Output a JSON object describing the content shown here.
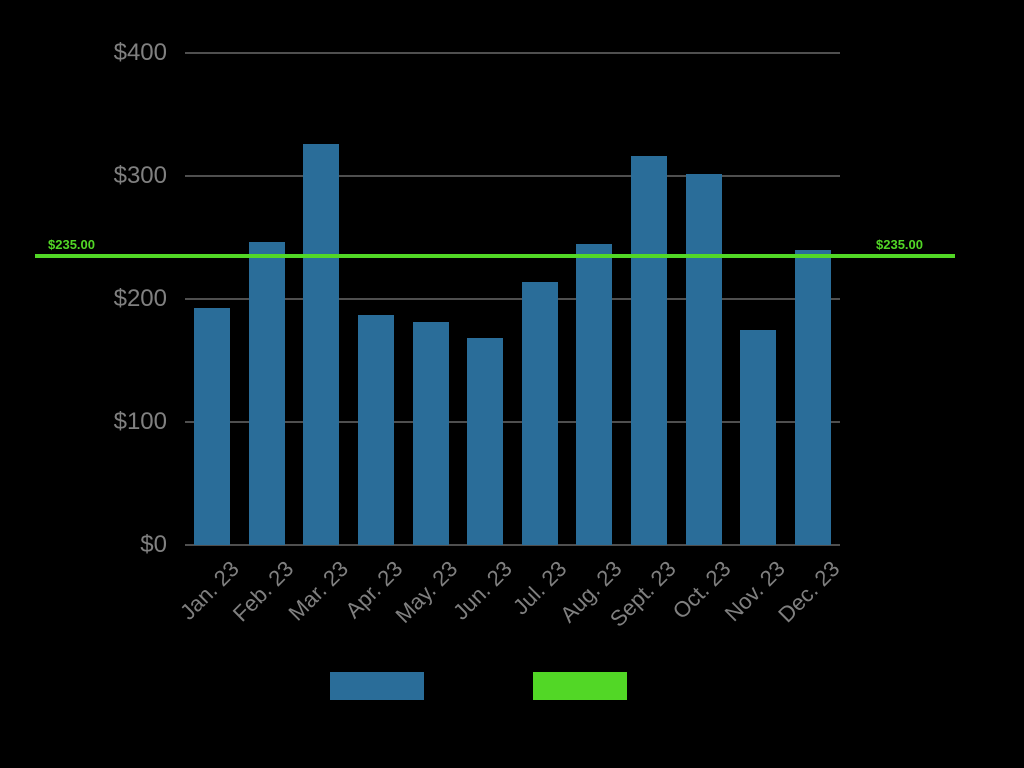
{
  "chart_data": {
    "type": "bar",
    "categories": [
      "Jan. 23",
      "Feb. 23",
      "Mar. 23",
      "Apr. 23",
      "May. 23",
      "Jun. 23",
      "Jul. 23",
      "Aug. 23",
      "Sept. 23",
      "Oct. 23",
      "Nov. 23",
      "Dec. 23"
    ],
    "values": [
      193,
      246,
      326,
      187,
      181,
      168,
      214,
      245,
      316,
      302,
      175,
      240
    ],
    "title": "",
    "xlabel": "",
    "ylabel": "",
    "ylim": [
      0,
      400
    ],
    "yticks": [
      {
        "value": 0,
        "label": "$0"
      },
      {
        "value": 100,
        "label": "$100"
      },
      {
        "value": 200,
        "label": "$200"
      },
      {
        "value": 300,
        "label": "$300"
      },
      {
        "value": 400,
        "label": "$400"
      }
    ],
    "grid": true,
    "legend_position": "bottom",
    "reference_line": {
      "value": 235,
      "label": "$235.00",
      "color": "#52d726"
    }
  },
  "colors": {
    "background": "#000000",
    "bar": "#2a6d99",
    "grid": "#4f4f4f",
    "axis_text": "#808080",
    "reference": "#52d726"
  },
  "legend": {
    "items": [
      {
        "name": "bars",
        "color": "#2a6d99",
        "label": ""
      },
      {
        "name": "reference",
        "color": "#52d726",
        "label": ""
      }
    ]
  }
}
